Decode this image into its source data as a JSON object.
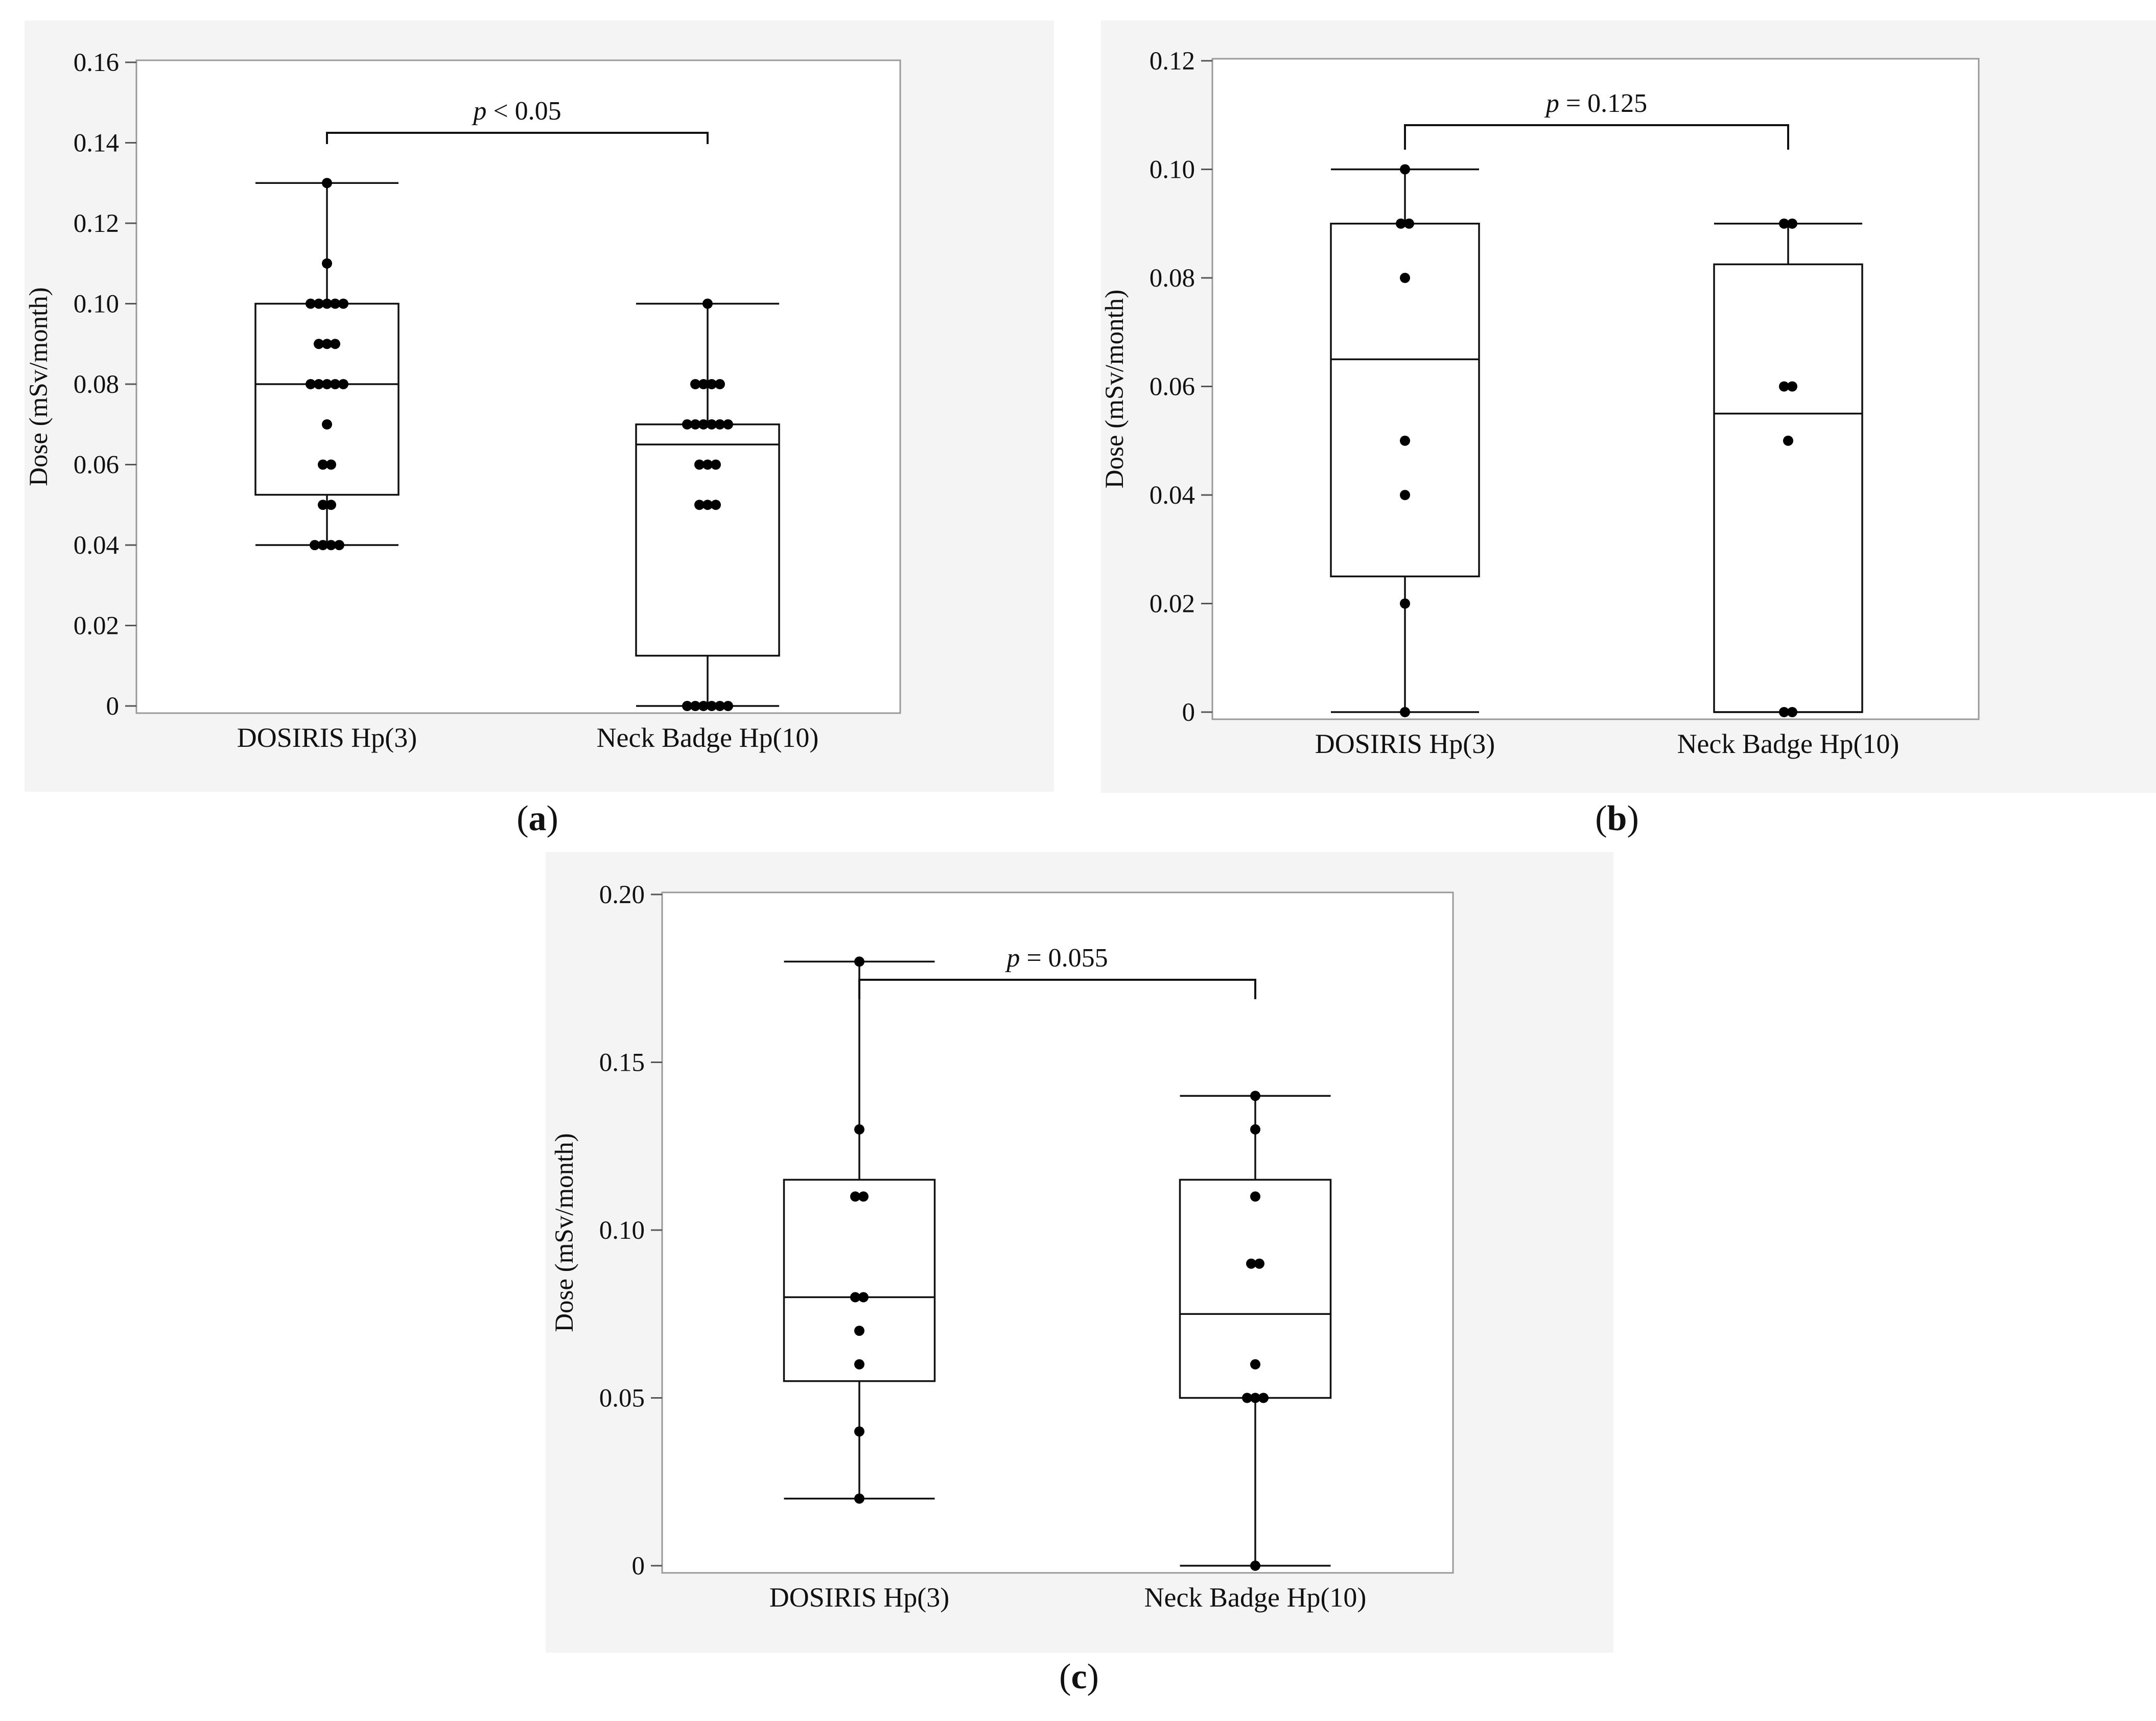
{
  "figure": {
    "panels": [
      {
        "id": "a",
        "caption_letter": "a"
      },
      {
        "id": "b",
        "caption_letter": "b"
      },
      {
        "id": "c",
        "caption_letter": "c"
      }
    ]
  },
  "chart_data": [
    {
      "panel": "a",
      "type": "box",
      "title": "",
      "xlabel": "",
      "ylabel": "Dose (mSv/month)",
      "ylim": [
        0,
        0.16
      ],
      "ticks": [
        0,
        0.02,
        0.04,
        0.06,
        0.08,
        0.1,
        0.12,
        0.14,
        0.16
      ],
      "tick_labels": [
        "0",
        "0.02",
        "0.04",
        "0.06",
        "0.08",
        "0.10",
        "0.12",
        "0.14",
        "0.16"
      ],
      "categories": [
        "DOSIRIS Hp(3)",
        "Neck Badge Hp(10)"
      ],
      "annotation": {
        "p_symbol": "p",
        "text": " < 0.05"
      },
      "series": [
        {
          "name": "DOSIRIS Hp(3)",
          "min": 0.04,
          "q1": 0.0525,
          "median": 0.08,
          "q3": 0.1,
          "max": 0.13,
          "points": [
            0.13,
            0.11,
            0.1,
            0.1,
            0.1,
            0.1,
            0.1,
            0.09,
            0.09,
            0.09,
            0.08,
            0.08,
            0.08,
            0.08,
            0.08,
            0.07,
            0.06,
            0.06,
            0.05,
            0.05,
            0.04,
            0.04,
            0.04,
            0.04
          ]
        },
        {
          "name": "Neck Badge Hp(10)",
          "min": 0.0,
          "q1": 0.0125,
          "median": 0.065,
          "q3": 0.07,
          "max": 0.1,
          "points": [
            0.1,
            0.08,
            0.08,
            0.08,
            0.08,
            0.07,
            0.07,
            0.07,
            0.07,
            0.07,
            0.07,
            0.06,
            0.06,
            0.06,
            0.05,
            0.05,
            0.05,
            0.0,
            0.0,
            0.0,
            0.0,
            0.0,
            0.0
          ]
        }
      ]
    },
    {
      "panel": "b",
      "type": "box",
      "title": "",
      "xlabel": "",
      "ylabel": "Dose (mSv/month)",
      "ylim": [
        0,
        0.12
      ],
      "ticks": [
        0,
        0.02,
        0.04,
        0.06,
        0.08,
        0.1,
        0.12
      ],
      "tick_labels": [
        "0",
        "0.02",
        "0.04",
        "0.06",
        "0.08",
        "0.10",
        "0.12"
      ],
      "categories": [
        "DOSIRIS Hp(3)",
        "Neck Badge Hp(10)"
      ],
      "annotation": {
        "p_symbol": "p",
        "text": " = 0.125"
      },
      "series": [
        {
          "name": "DOSIRIS Hp(3)",
          "min": 0.0,
          "q1": 0.025,
          "median": 0.065,
          "q3": 0.09,
          "max": 0.1,
          "points": [
            0.1,
            0.09,
            0.09,
            0.08,
            0.05,
            0.04,
            0.02,
            0.0
          ]
        },
        {
          "name": "Neck Badge Hp(10)",
          "min": 0.0,
          "q1": 0.0,
          "median": 0.055,
          "q3": 0.0825,
          "max": 0.09,
          "points": [
            0.09,
            0.09,
            0.06,
            0.06,
            0.05,
            0.0,
            0.0
          ]
        }
      ]
    },
    {
      "panel": "c",
      "type": "box",
      "title": "",
      "xlabel": "",
      "ylabel": "Dose (mSv/month)",
      "ylim": [
        0,
        0.2
      ],
      "ticks": [
        0,
        0.05,
        0.1,
        0.15,
        0.2
      ],
      "tick_labels": [
        "0",
        "0.05",
        "0.10",
        "0.15",
        "0.20"
      ],
      "categories": [
        "DOSIRIS Hp(3)",
        "Neck Badge Hp(10)"
      ],
      "annotation": {
        "p_symbol": "p",
        "text": " = 0.055"
      },
      "series": [
        {
          "name": "DOSIRIS Hp(3)",
          "min": 0.02,
          "q1": 0.055,
          "median": 0.08,
          "q3": 0.115,
          "max": 0.18,
          "points": [
            0.18,
            0.13,
            0.11,
            0.11,
            0.08,
            0.08,
            0.07,
            0.06,
            0.04,
            0.02
          ]
        },
        {
          "name": "Neck Badge Hp(10)",
          "min": 0.0,
          "q1": 0.05,
          "median": 0.075,
          "q3": 0.115,
          "max": 0.14,
          "points": [
            0.14,
            0.13,
            0.11,
            0.09,
            0.09,
            0.06,
            0.05,
            0.05,
            0.05,
            0.0
          ]
        }
      ]
    }
  ]
}
